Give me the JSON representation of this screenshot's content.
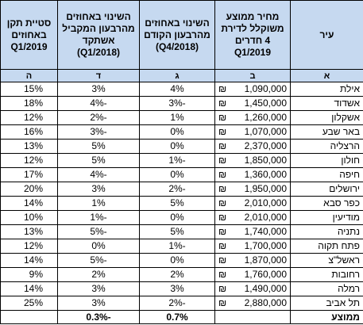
{
  "header": {
    "columns": [
      "עיר",
      "מחיר ממוצע משוקלל לדירת 4 חדרים Q1/2019",
      "השינוי באחוזים מהרבעון הקודם (Q4/2018)",
      "השינוי באחוזים מהרבעון המקביל אשתקד (Q1/2018)",
      "סטיית תקן באחוזים Q1/2019"
    ],
    "letters": [
      "א",
      "ב",
      "ג",
      "ד",
      "ה"
    ]
  },
  "rows": [
    {
      "city": "אילת",
      "currency": "₪",
      "price": "1,090,000",
      "change_prev": "4%",
      "change_year": "3%",
      "std": "15%"
    },
    {
      "city": "אשדוד",
      "currency": "₪",
      "price": "1,450,000",
      "change_prev": "-3%",
      "change_year": "-4%",
      "std": "18%"
    },
    {
      "city": "אשקלון",
      "currency": "₪",
      "price": "1,260,000",
      "change_prev": "1%",
      "change_year": "-2%",
      "std": "12%"
    },
    {
      "city": "באר שבע",
      "currency": "₪",
      "price": "1,070,000",
      "change_prev": "0%",
      "change_year": "-3%",
      "std": "16%"
    },
    {
      "city": "הרצליה",
      "currency": "₪",
      "price": "2,370,000",
      "change_prev": "0%",
      "change_year": "5%",
      "std": "13%"
    },
    {
      "city": "חולון",
      "currency": "₪",
      "price": "1,850,000",
      "change_prev": "-1%",
      "change_year": "5%",
      "std": "12%"
    },
    {
      "city": "חיפה",
      "currency": "₪",
      "price": "1,360,000",
      "change_prev": "0%",
      "change_year": "-4%",
      "std": "17%"
    },
    {
      "city": "ירושלים",
      "currency": "₪",
      "price": "1,950,000",
      "change_prev": "-2%",
      "change_year": "3%",
      "std": "20%"
    },
    {
      "city": "כפר סבא",
      "currency": "₪",
      "price": "2,010,000",
      "change_prev": "5%",
      "change_year": "1%",
      "std": "14%"
    },
    {
      "city": "מודיעין",
      "currency": "₪",
      "price": "2,010,000",
      "change_prev": "0%",
      "change_year": "-1%",
      "std": "10%"
    },
    {
      "city": "נתניה",
      "currency": "₪",
      "price": "1,740,000",
      "change_prev": "5%",
      "change_year": "-5%",
      "std": "13%"
    },
    {
      "city": "פתח תקוה",
      "currency": "₪",
      "price": "1,700,000",
      "change_prev": "-1%",
      "change_year": "0%",
      "std": "12%"
    },
    {
      "city": "ראשל\"צ",
      "currency": "₪",
      "price": "1,870,000",
      "change_prev": "0%",
      "change_year": "-5%",
      "std": "14%"
    },
    {
      "city": "רחובות",
      "currency": "₪",
      "price": "1,760,000",
      "change_prev": "2%",
      "change_year": "2%",
      "std": "9%"
    },
    {
      "city": "רמלה",
      "currency": "₪",
      "price": "1,490,000",
      "change_prev": "3%",
      "change_year": "3%",
      "std": "14%"
    },
    {
      "city": "תל אביב",
      "currency": "₪",
      "price": "2,880,000",
      "change_prev": "-2%",
      "change_year": "3%",
      "std": "25%"
    }
  ],
  "average": {
    "label": "ממוצע",
    "change_prev": "0.7%",
    "change_year": "-0.3%"
  }
}
